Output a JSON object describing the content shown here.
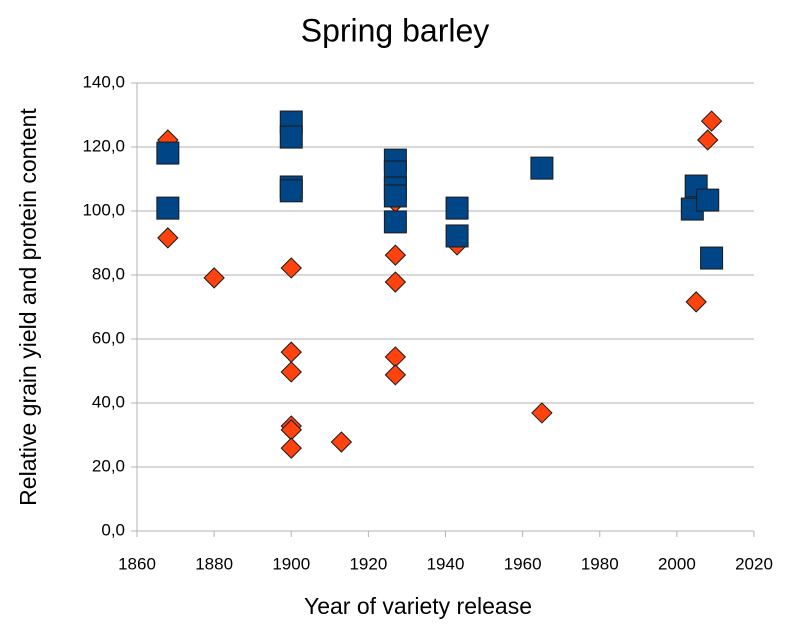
{
  "chart_data": {
    "type": "scatter",
    "title": "Spring barley",
    "x_label": "Year of variety release",
    "y_label": "Relative grain yield and protein content",
    "xlim": [
      1860,
      2020
    ],
    "xticks": [
      1860,
      1880,
      1900,
      1920,
      1940,
      1960,
      1980,
      2000,
      2020
    ],
    "ylim": [
      0,
      140
    ],
    "yticks": [
      {
        "value": 0,
        "label": "0,0"
      },
      {
        "value": 20,
        "label": "20,0"
      },
      {
        "value": 40,
        "label": "40,0"
      },
      {
        "value": 60,
        "label": "60,0"
      },
      {
        "value": 80,
        "label": "80,0"
      },
      {
        "value": 100,
        "label": "100,0"
      },
      {
        "value": 120,
        "label": "120,0"
      },
      {
        "value": 140,
        "label": "140,0"
      }
    ],
    "grid": true,
    "series": [
      {
        "color": "#ff420e",
        "marker": "diamond",
        "x": [
          1868,
          1868,
          1880,
          1900,
          1900,
          1900,
          1900,
          1900,
          1900,
          1913,
          1927,
          1927,
          1927,
          1927,
          1927,
          1943,
          1965,
          2005,
          2008,
          2009
        ],
        "values": [
          122.2,
          91.6,
          79.1,
          82.2,
          55.9,
          49.7,
          32.8,
          31.6,
          25.9,
          27.8,
          102.8,
          86.2,
          77.8,
          54.4,
          48.8,
          89.4,
          36.9,
          71.6,
          122.2,
          128.1
        ]
      },
      {
        "color": "#004586",
        "marker": "square",
        "x": [
          1868,
          1868,
          1900,
          1900,
          1900,
          1900,
          1927,
          1927,
          1927,
          1927,
          1927,
          1943,
          1943,
          1965,
          2004,
          2005,
          2008,
          2009
        ],
        "values": [
          118.1,
          100.9,
          127.8,
          123.1,
          107.5,
          106.3,
          115.9,
          112.2,
          107.2,
          104.7,
          96.6,
          100.9,
          92.2,
          113.4,
          100.6,
          107.8,
          103.4,
          85.3
        ]
      }
    ]
  }
}
